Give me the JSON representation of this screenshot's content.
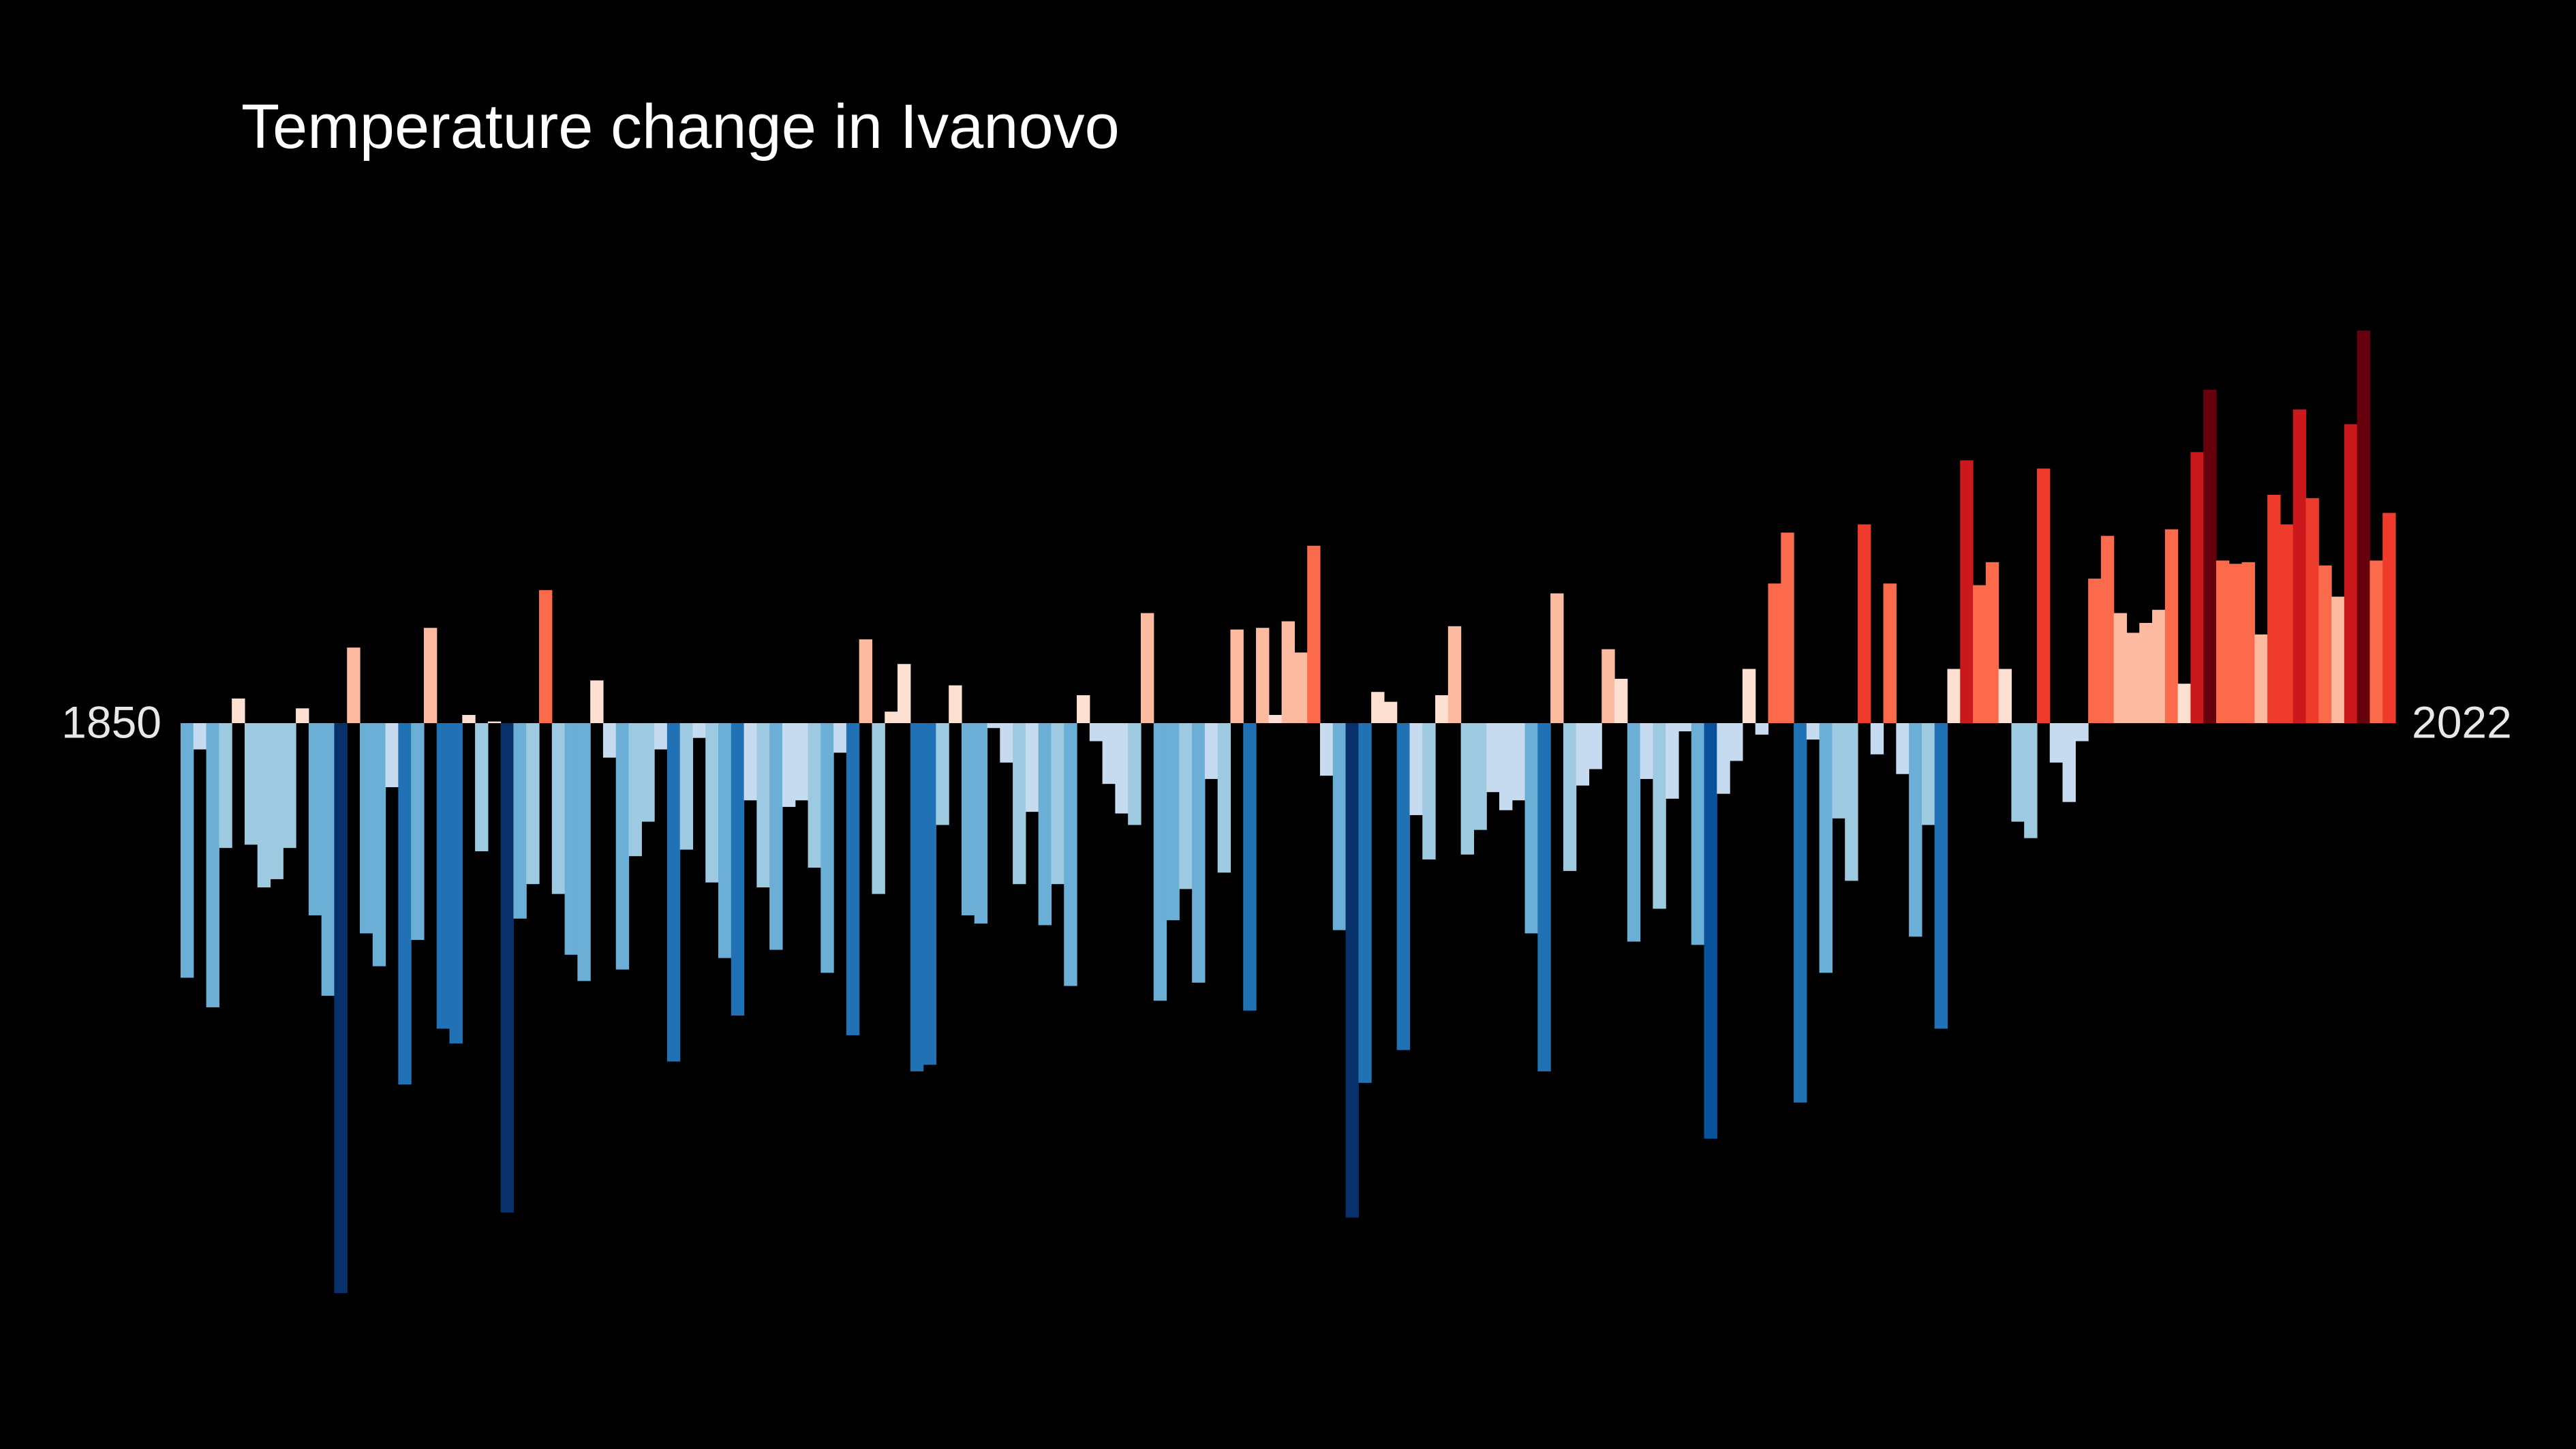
{
  "chart_data": {
    "type": "bar",
    "title": "Temperature change in Ivanovo",
    "categories": [
      "1850",
      null,
      null,
      null,
      null,
      null,
      null,
      null,
      null,
      null,
      null,
      null,
      null,
      null,
      null,
      null,
      null,
      null,
      null,
      null,
      null,
      null,
      null,
      null,
      null,
      null,
      null,
      null,
      null,
      null,
      null,
      null,
      null,
      null,
      null,
      null,
      null,
      null,
      null,
      null,
      null,
      null,
      null,
      null,
      null,
      null,
      null,
      null,
      null,
      null,
      null,
      null,
      null,
      null,
      null,
      null,
      null,
      null,
      null,
      null,
      null,
      null,
      null,
      null,
      null,
      null,
      null,
      null,
      null,
      null,
      null,
      null,
      null,
      null,
      null,
      null,
      null,
      null,
      null,
      null,
      null,
      null,
      null,
      null,
      null,
      null,
      null,
      null,
      null,
      null,
      null,
      null,
      null,
      null,
      null,
      null,
      null,
      null,
      null,
      null,
      null,
      null,
      null,
      null,
      null,
      null,
      null,
      null,
      null,
      null,
      null,
      null,
      null,
      null,
      null,
      null,
      null,
      null,
      null,
      null,
      null,
      null,
      null,
      null,
      null,
      null,
      null,
      null,
      null,
      null,
      null,
      null,
      null,
      null,
      null,
      null,
      null,
      null,
      null,
      null,
      null,
      null,
      null,
      null,
      null,
      null,
      null,
      null,
      null,
      null,
      null,
      null,
      null,
      null,
      null,
      null,
      null,
      null,
      null,
      null,
      null,
      null,
      null,
      null,
      null,
      null,
      null,
      null,
      null,
      null,
      null,
      null,
      "2022"
    ],
    "values": [
      -1.55,
      -0.16,
      -1.73,
      -0.76,
      0.15,
      -0.74,
      -1.0,
      -0.95,
      -0.76,
      0.09,
      -1.17,
      -1.66,
      -3.47,
      0.46,
      -1.28,
      -1.48,
      -0.39,
      -2.2,
      -1.32,
      0.58,
      -1.86,
      -1.95,
      0.05,
      -0.78,
      0.01,
      -2.98,
      -1.19,
      -0.98,
      0.81,
      -1.04,
      -1.41,
      -1.57,
      0.26,
      -0.21,
      -1.5,
      -0.81,
      -0.6,
      -0.16,
      -2.06,
      -0.77,
      -0.09,
      -0.97,
      -1.43,
      -1.78,
      -0.47,
      -1.0,
      -1.38,
      -0.51,
      -0.47,
      -0.88,
      -1.52,
      -0.18,
      -1.9,
      0.51,
      -1.04,
      0.07,
      0.36,
      -2.12,
      -2.08,
      -0.62,
      0.23,
      -1.17,
      -1.22,
      -0.03,
      -0.24,
      -0.98,
      -0.54,
      -1.23,
      -0.98,
      -1.6,
      0.17,
      -0.11,
      -0.37,
      -0.55,
      -0.62,
      0.67,
      -1.69,
      -1.2,
      -1.01,
      -1.58,
      -0.34,
      -0.91,
      0.57,
      -1.75,
      0.58,
      0.05,
      0.62,
      0.43,
      1.08,
      -0.32,
      -1.26,
      -3.01,
      -2.19,
      0.19,
      0.13,
      -1.99,
      -0.56,
      -0.83,
      0.17,
      0.59,
      -0.8,
      -0.65,
      -0.42,
      -0.53,
      -0.47,
      -1.28,
      -2.12,
      0.79,
      -0.9,
      -0.38,
      -0.28,
      0.45,
      0.27,
      -1.33,
      -0.34,
      -1.13,
      -0.46,
      -0.05,
      -1.35,
      -2.53,
      -0.43,
      -0.23,
      0.33,
      -0.07,
      0.85,
      1.16,
      -2.31,
      -0.1,
      -1.52,
      -0.58,
      -0.96,
      1.21,
      -0.19,
      0.85,
      -0.31,
      -1.3,
      -0.62,
      -1.86,
      0.33,
      1.6,
      0.84,
      0.98,
      0.33,
      -0.6,
      -0.7,
      1.55,
      -0.24,
      -0.48,
      -0.11,
      0.88,
      1.14,
      0.67,
      0.55,
      0.61,
      0.69,
      1.18,
      0.24,
      1.65,
      2.03,
      0.99,
      0.97,
      0.98,
      0.54,
      1.39,
      1.21,
      1.91,
      1.37,
      0.96,
      0.77,
      1.82,
      2.39,
      0.99,
      1.28
    ],
    "colors": [
      "#08306b",
      "#08519c",
      "#2171b5",
      "#6baed6",
      "#9ecae1",
      "#c6dbef",
      "#fee0d2",
      "#fcbba1",
      "#fb6a4a",
      "#ef3b2c",
      "#cb181d",
      "#67000d"
    ]
  }
}
